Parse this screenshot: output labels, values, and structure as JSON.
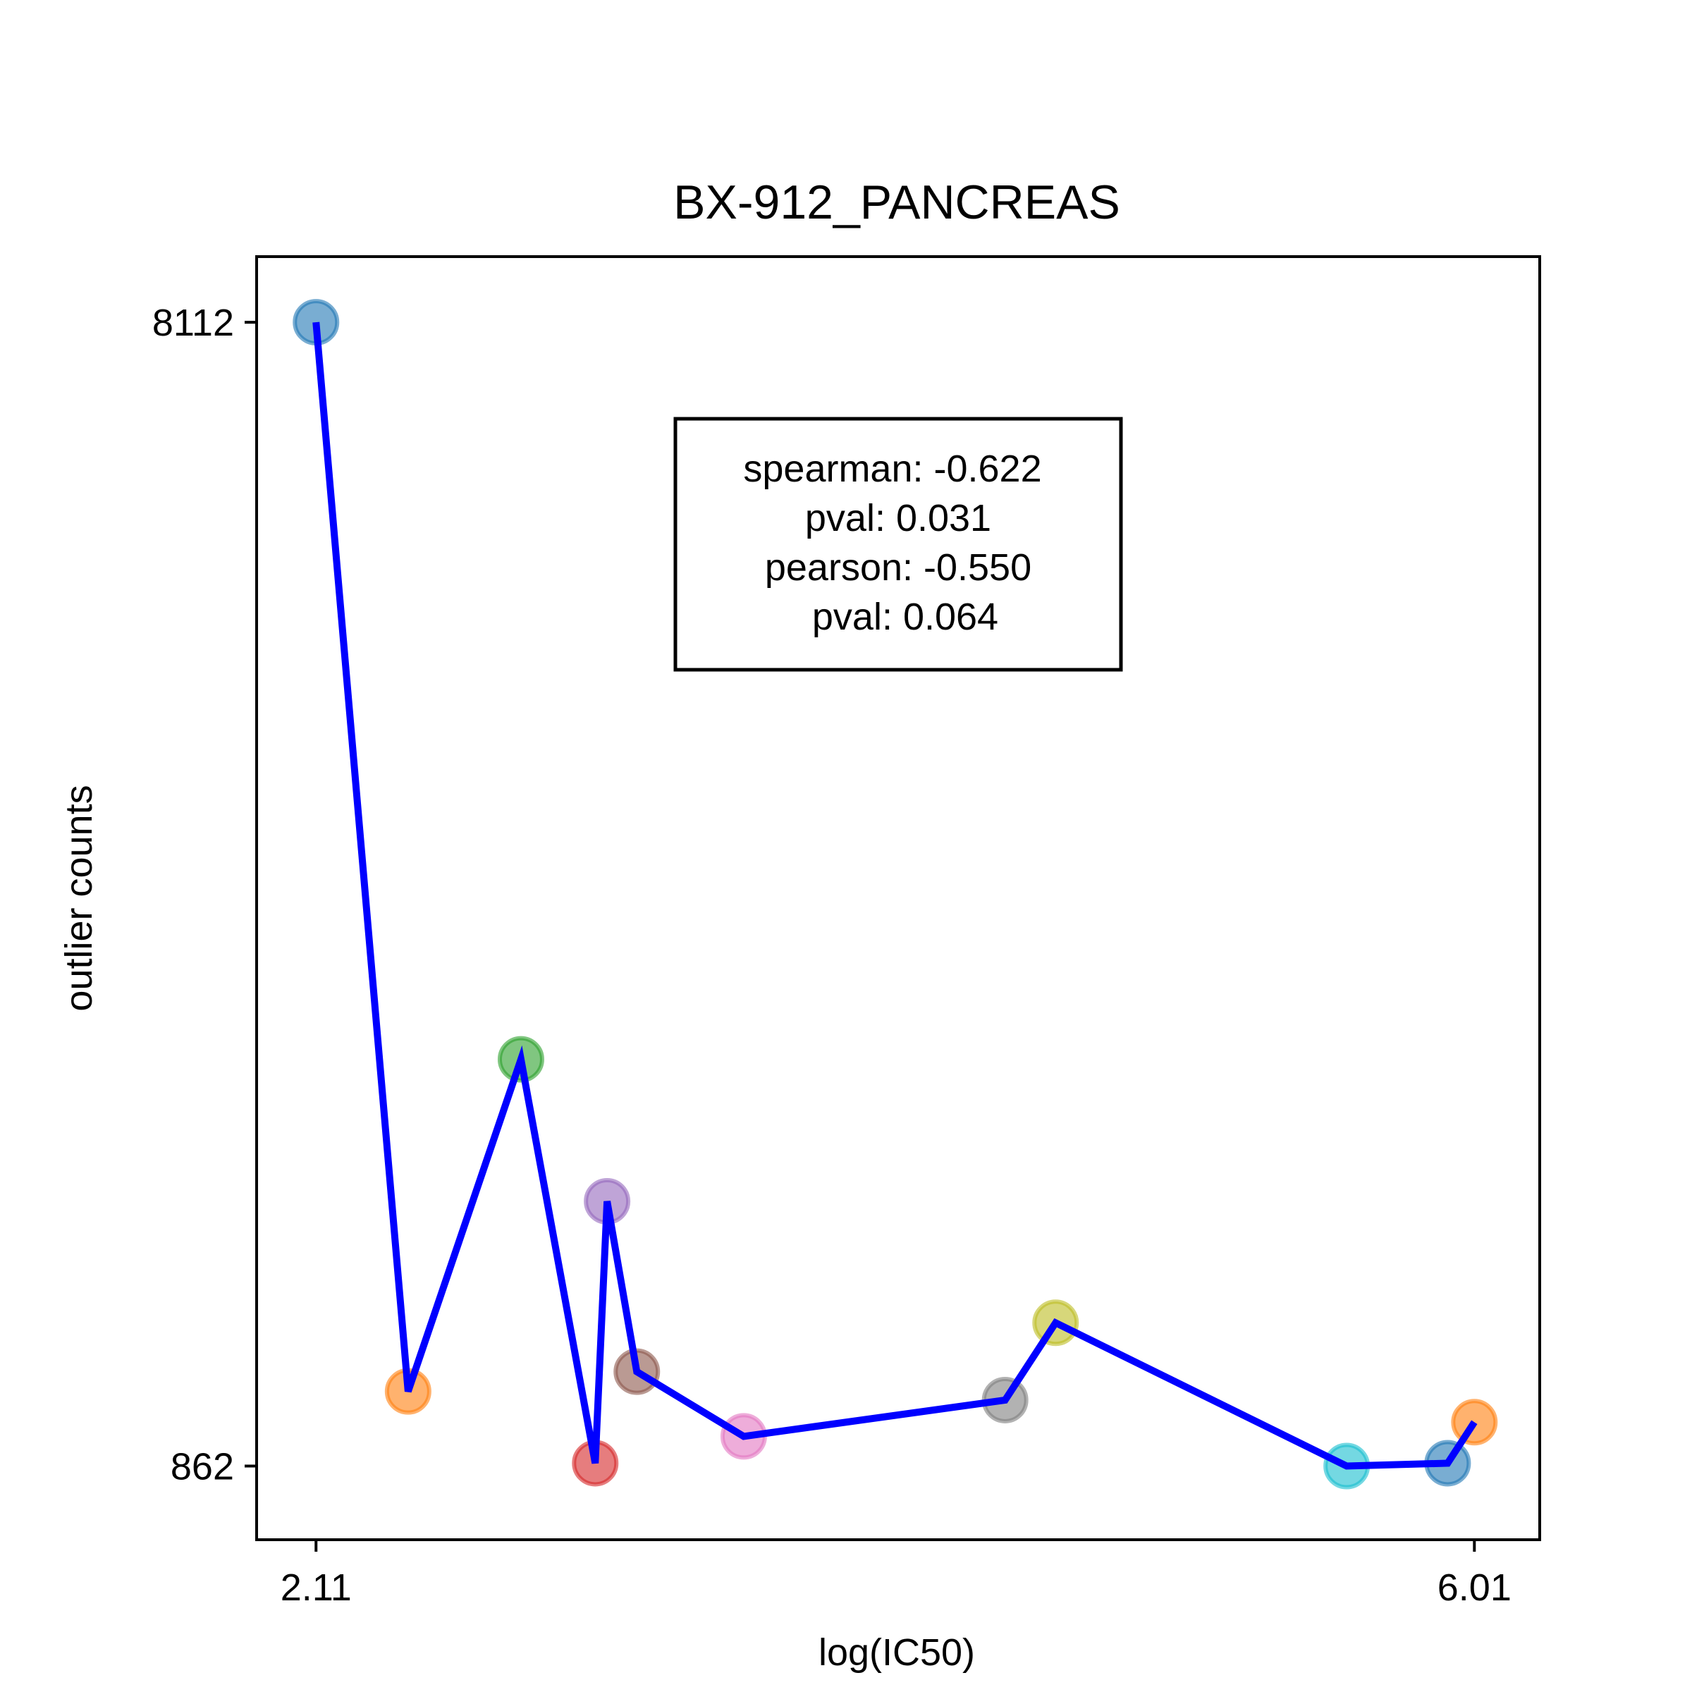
{
  "chart_data": {
    "type": "scatter",
    "title": "BX-912_PANCREAS",
    "xlabel": "log(IC50)",
    "ylabel": "outlier counts",
    "x_ticks": [
      "2.11",
      "6.01"
    ],
    "y_ticks": [
      "8112",
      "862"
    ],
    "xlim": [
      1.91,
      6.23
    ],
    "ylim": [
      395,
      8528
    ],
    "grid": false,
    "line_color": "#0000ff",
    "points": [
      {
        "x": 2.11,
        "y": 8112,
        "color": "#1f77b4"
      },
      {
        "x": 2.42,
        "y": 1335,
        "color": "#ff7f0e"
      },
      {
        "x": 2.8,
        "y": 3440,
        "color": "#2ca02c"
      },
      {
        "x": 3.05,
        "y": 880,
        "color": "#d62728"
      },
      {
        "x": 3.09,
        "y": 2540,
        "color": "#9467bd"
      },
      {
        "x": 3.19,
        "y": 1460,
        "color": "#8c564b"
      },
      {
        "x": 3.55,
        "y": 1050,
        "color": "#e377c2"
      },
      {
        "x": 4.43,
        "y": 1280,
        "color": "#7f7f7f"
      },
      {
        "x": 4.6,
        "y": 1770,
        "color": "#bcbd22"
      },
      {
        "x": 5.58,
        "y": 862,
        "color": "#17becf"
      },
      {
        "x": 5.92,
        "y": 880,
        "color": "#1f77b4"
      },
      {
        "x": 6.01,
        "y": 1140,
        "color": "#ff7f0e"
      }
    ],
    "stats": {
      "position": "top-center",
      "lines": [
        "spearman: -0.622",
        "pval: 0.031",
        "pearson: -0.550",
        "pval: 0.064"
      ]
    }
  }
}
